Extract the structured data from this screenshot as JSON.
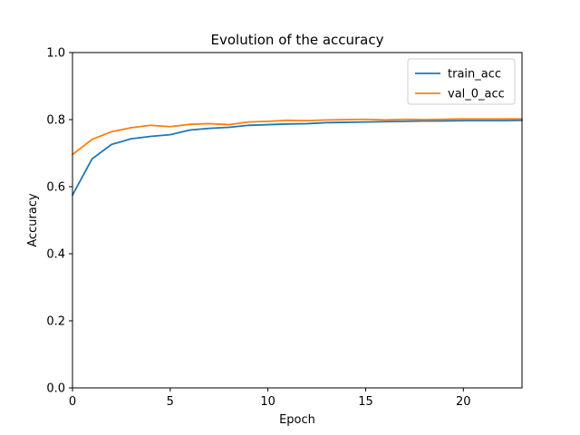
{
  "chart_data": {
    "type": "line",
    "title": "Evolution of the accuracy",
    "xlabel": "Epoch",
    "ylabel": "Accuracy",
    "xlim": [
      0,
      23
    ],
    "ylim": [
      0.0,
      1.0
    ],
    "x_ticks": [
      0,
      5,
      10,
      15,
      20
    ],
    "x_tick_labels": [
      "0",
      "5",
      "10",
      "15",
      "20"
    ],
    "y_ticks": [
      0.0,
      0.2,
      0.4,
      0.6,
      0.8,
      1.0
    ],
    "y_tick_labels": [
      "0.0",
      "0.2",
      "0.4",
      "0.6",
      "0.8",
      "1.0"
    ],
    "grid": false,
    "legend_position": "top-right",
    "x": [
      0,
      1,
      2,
      3,
      4,
      5,
      6,
      7,
      8,
      9,
      10,
      11,
      12,
      13,
      14,
      15,
      16,
      17,
      18,
      19,
      20,
      21,
      22,
      23
    ],
    "series": [
      {
        "name": "train_acc",
        "color": "#1f77b4",
        "values": [
          0.575,
          0.683,
          0.726,
          0.743,
          0.75,
          0.755,
          0.769,
          0.774,
          0.777,
          0.783,
          0.785,
          0.787,
          0.788,
          0.791,
          0.792,
          0.793,
          0.794,
          0.795,
          0.796,
          0.796,
          0.797,
          0.797,
          0.797,
          0.798
        ]
      },
      {
        "name": "val_0_acc",
        "color": "#ff7f0e",
        "values": [
          0.696,
          0.741,
          0.764,
          0.776,
          0.783,
          0.779,
          0.786,
          0.788,
          0.785,
          0.793,
          0.795,
          0.798,
          0.797,
          0.799,
          0.8,
          0.801,
          0.799,
          0.801,
          0.8,
          0.801,
          0.802,
          0.802,
          0.802,
          0.802
        ]
      }
    ]
  }
}
